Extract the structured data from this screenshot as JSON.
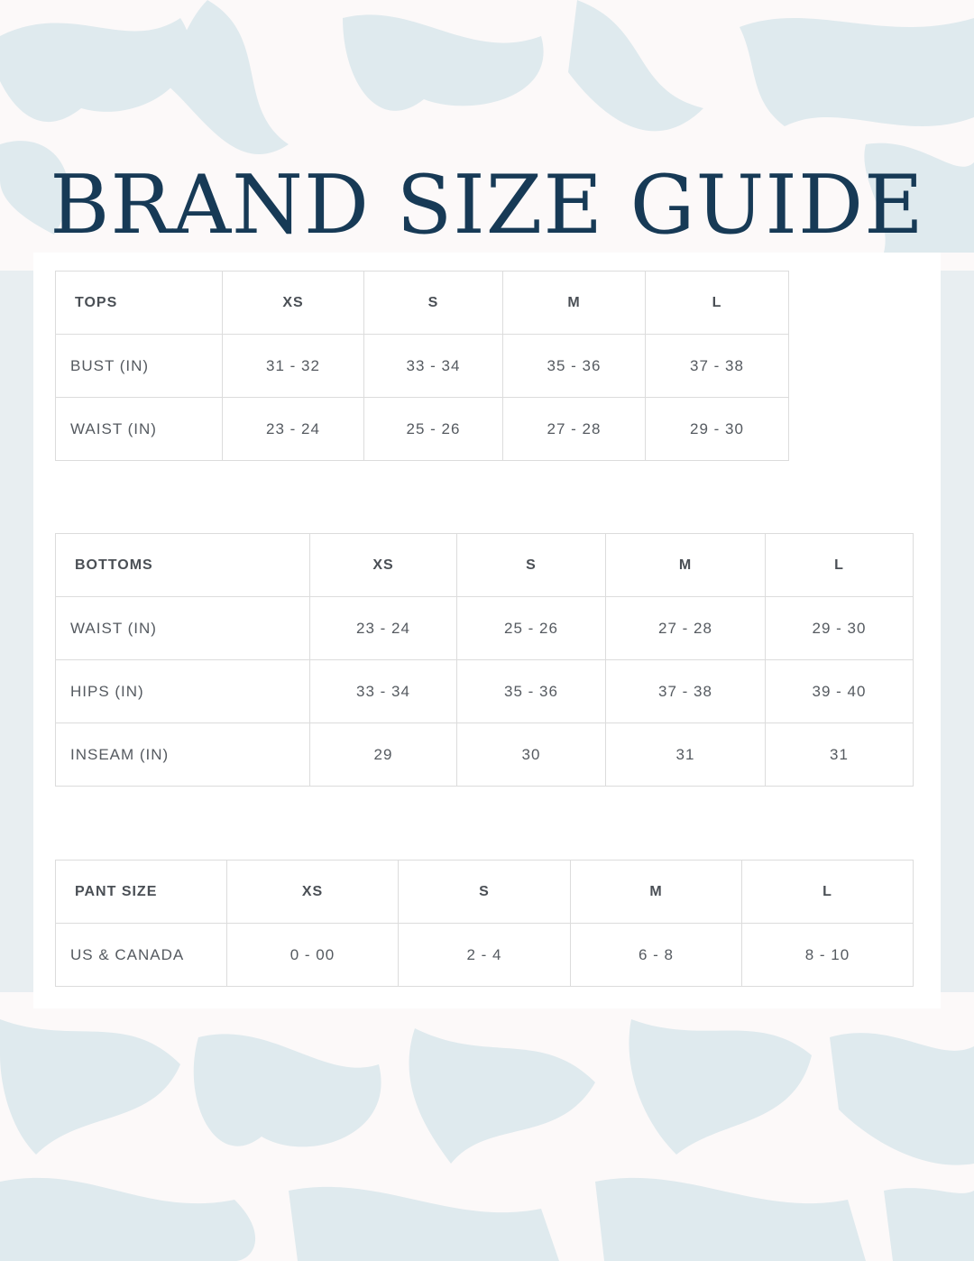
{
  "title": "BRAND SIZE GUIDE",
  "colors": {
    "title": "#173a56",
    "pattern": "#dfeaee",
    "background": "#fcf9f9"
  },
  "tables": [
    {
      "header": [
        "TOPS",
        "XS",
        "S",
        "M",
        "L"
      ],
      "rows": [
        [
          "BUST (IN)",
          "31 - 32",
          "33 - 34",
          "35 - 36",
          "37 - 38"
        ],
        [
          "WAIST (IN)",
          "23 - 24",
          "25 - 26",
          "27 - 28",
          "29 - 30"
        ]
      ]
    },
    {
      "header": [
        "BOTTOMS",
        "XS",
        "S",
        "M",
        "L"
      ],
      "rows": [
        [
          "WAIST (IN)",
          "23 - 24",
          "25 - 26",
          "27 - 28",
          "29 - 30"
        ],
        [
          "HIPS (IN)",
          "33 - 34",
          "35 - 36",
          "37 - 38",
          "39 - 40"
        ],
        [
          "INSEAM (IN)",
          "29",
          "30",
          "31",
          "31"
        ]
      ]
    },
    {
      "header": [
        "PANT SIZE",
        "XS",
        "S",
        "M",
        "L"
      ],
      "rows": [
        [
          "US & CANADA",
          "0 - 00",
          "2 - 4",
          "6 - 8",
          "8 - 10"
        ]
      ]
    }
  ]
}
